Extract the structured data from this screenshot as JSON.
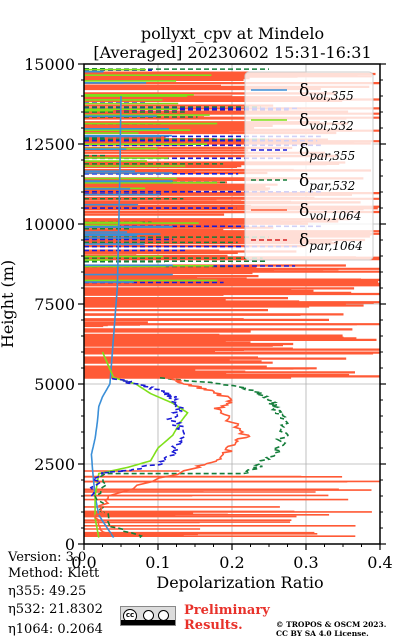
{
  "chart_data": {
    "type": "line",
    "title": "pollyxt_cpv at Mindelo",
    "subtitle": "[Averaged] 20230602 15:31-16:31",
    "xlabel": "Depolarization Ratio",
    "ylabel": "Height (m)",
    "xlim": [
      0,
      0.4
    ],
    "ylim": [
      0,
      15000
    ],
    "xticks": [
      "0.0",
      "0.1",
      "0.2",
      "0.3",
      "0.4"
    ],
    "yticks": [
      "0",
      "2500",
      "5000",
      "7500",
      "10000",
      "12500",
      "15000"
    ],
    "grid": true,
    "legend_position": "top-right",
    "series": [
      {
        "name": "δvol,355",
        "color": "#3a8fd8",
        "dash": "solid",
        "x": [
          0.04,
          0.02,
          0.015,
          0.012,
          0.01,
          0.015,
          0.018,
          0.02,
          0.025,
          0.03,
          0.035,
          0.04,
          0.045,
          0.048,
          0.05
        ],
        "y": [
          200,
          900,
          1500,
          2200,
          2800,
          3300,
          3800,
          4300,
          4600,
          4800,
          5000,
          6500,
          8000,
          11000,
          14000
        ]
      },
      {
        "name": "δvol,532",
        "color": "#7fe01a",
        "dash": "solid",
        "x": [
          0.02,
          0.015,
          0.015,
          0.02,
          0.06,
          0.09,
          0.1,
          0.12,
          0.13,
          0.14,
          0.12,
          0.09,
          0.07,
          0.04,
          0.025
        ],
        "y": [
          200,
          800,
          1500,
          2200,
          2400,
          2600,
          3000,
          3400,
          3800,
          4100,
          4400,
          4700,
          5000,
          5200,
          6000
        ]
      },
      {
        "name": "δpar,355",
        "color": "#1a1ad6",
        "dash": "dashed",
        "x": [
          0.01,
          0.02,
          0.06,
          0.1,
          0.12,
          0.13,
          0.13,
          0.12,
          0.13,
          0.12,
          0.1,
          0.07,
          0.04
        ],
        "y": [
          1500,
          2200,
          2300,
          2500,
          2800,
          3200,
          3600,
          3900,
          4300,
          4600,
          4800,
          5000,
          5200
        ]
      },
      {
        "name": "δpar,532",
        "color": "#147d3a",
        "dash": "dashed",
        "x": [
          0.08,
          0.03,
          0.02,
          0.03,
          0.22,
          0.24,
          0.26,
          0.27,
          0.27,
          0.26,
          0.25,
          0.23,
          0.19,
          0.1
        ],
        "y": [
          200,
          600,
          1500,
          2200,
          2200,
          2500,
          2900,
          3400,
          3900,
          4200,
          4500,
          4800,
          5000,
          5200
        ]
      },
      {
        "name": "δvol,1064",
        "color": "#ff5a36",
        "dash": "solid",
        "x": [
          0.03,
          0.02,
          0.03,
          0.15,
          0.19,
          0.2,
          0.22,
          0.2,
          0.18,
          0.2,
          0.17,
          0.14,
          0.11
        ],
        "y": [
          300,
          900,
          1500,
          2400,
          2700,
          3100,
          3400,
          3800,
          4200,
          4500,
          4800,
          5000,
          5200
        ]
      },
      {
        "name": "δpar,1064",
        "color": "#d62020",
        "dash": "dashed",
        "x": [],
        "y": []
      }
    ]
  },
  "info": {
    "version": "Version: 3.0",
    "method": "Method: Klett",
    "eta355": "η355:  49.25",
    "eta532": "η532: 21.8302",
    "eta1064": "η1064: 0.2064"
  },
  "footer": {
    "preliminary_line1": "Preliminary",
    "preliminary_line2": "Results.",
    "copyright_line1": "© TROPOS & OSCM 2023.",
    "copyright_line2": "CC BY SA 4.0 License.",
    "license_badge": "CC BY SA"
  }
}
